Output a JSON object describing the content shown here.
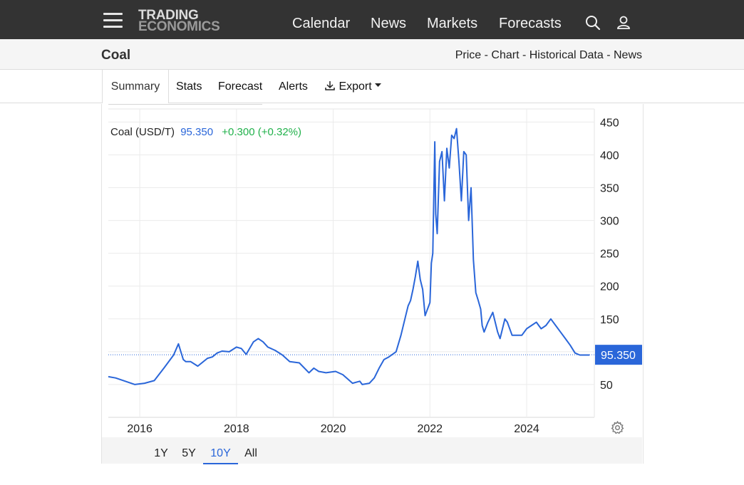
{
  "brand": {
    "line1": "TRADING",
    "line2": "ECONOMICS"
  },
  "nav": {
    "items": [
      "Calendar",
      "News",
      "Markets",
      "Forecasts"
    ]
  },
  "page": {
    "title": "Coal",
    "links": [
      "Price",
      "Chart",
      "Historical Data",
      "News"
    ],
    "link_sep": " - "
  },
  "tabs": {
    "summary": "Summary",
    "stats": "Stats",
    "forecast": "Forecast",
    "alerts": "Alerts",
    "export": "Export"
  },
  "legend": {
    "name": "Coal (USD/T)",
    "price": "95.350",
    "change": "+0.300 (+0.32%)"
  },
  "ranges": {
    "items": [
      "1Y",
      "5Y",
      "10Y",
      "All"
    ],
    "selected": "10Y"
  },
  "colors": {
    "line": "#2a66d9",
    "last_price_tag": "#2a66d9",
    "change_positive": "#21b14b",
    "topbar": "#333333"
  },
  "icons": {
    "menu": "hamburger-icon",
    "search": "search-icon",
    "user": "user-icon",
    "export": "download-icon",
    "settings": "gear-icon"
  },
  "chart_data": {
    "type": "line",
    "series_name": "Coal (USD/T)",
    "last_value": 95.35,
    "last_value_label": "95.350",
    "ylim": [
      0,
      470
    ],
    "yticks": [
      50,
      150,
      200,
      250,
      300,
      350,
      400,
      450
    ],
    "xlim": [
      2015.35,
      2025.4
    ],
    "xticks": [
      2016,
      2018,
      2020,
      2022,
      2024
    ],
    "grid": true,
    "y_axis_position": "right",
    "x": [
      2015.35,
      2015.5,
      2015.7,
      2015.9,
      2016.1,
      2016.3,
      2016.5,
      2016.7,
      2016.8,
      2016.85,
      2016.9,
      2016.95,
      2017.05,
      2017.2,
      2017.4,
      2017.5,
      2017.6,
      2017.7,
      2017.85,
      2018.0,
      2018.1,
      2018.2,
      2018.35,
      2018.45,
      2018.55,
      2018.65,
      2018.8,
      2018.95,
      2019.1,
      2019.3,
      2019.5,
      2019.6,
      2019.7,
      2019.85,
      2020.05,
      2020.2,
      2020.4,
      2020.55,
      2020.6,
      2020.75,
      2020.85,
      2020.95,
      2021.05,
      2021.15,
      2021.3,
      2021.4,
      2021.5,
      2021.55,
      2021.6,
      2021.65,
      2021.7,
      2021.75,
      2021.8,
      2021.85,
      2021.9,
      2021.95,
      2022.0,
      2022.03,
      2022.06,
      2022.1,
      2022.12,
      2022.15,
      2022.2,
      2022.25,
      2022.3,
      2022.35,
      2022.4,
      2022.45,
      2022.5,
      2022.55,
      2022.6,
      2022.65,
      2022.7,
      2022.75,
      2022.8,
      2022.85,
      2022.9,
      2022.95,
      2023.0,
      2023.05,
      2023.08,
      2023.12,
      2023.2,
      2023.3,
      2023.4,
      2023.45,
      2023.55,
      2023.6,
      2023.7,
      2023.8,
      2023.9,
      2024.0,
      2024.1,
      2024.2,
      2024.3,
      2024.4,
      2024.5,
      2024.6,
      2024.7,
      2024.8,
      2024.9,
      2025.0,
      2025.1,
      2025.2,
      2025.3
    ],
    "y": [
      62,
      60,
      55,
      50,
      52,
      56,
      75,
      95,
      112,
      100,
      88,
      85,
      85,
      78,
      90,
      92,
      98,
      101,
      100,
      107,
      105,
      96,
      115,
      120,
      115,
      107,
      102,
      95,
      85,
      83,
      68,
      75,
      70,
      68,
      70,
      65,
      52,
      55,
      50,
      52,
      60,
      75,
      88,
      92,
      100,
      125,
      155,
      170,
      178,
      195,
      215,
      238,
      210,
      195,
      155,
      165,
      175,
      235,
      250,
      420,
      310,
      280,
      390,
      405,
      330,
      410,
      380,
      430,
      425,
      440,
      390,
      330,
      405,
      400,
      300,
      350,
      240,
      190,
      178,
      165,
      140,
      130,
      145,
      160,
      130,
      120,
      150,
      145,
      125,
      125,
      125,
      135,
      140,
      145,
      135,
      140,
      150,
      140,
      130,
      120,
      110,
      98,
      95,
      95,
      95
    ]
  }
}
